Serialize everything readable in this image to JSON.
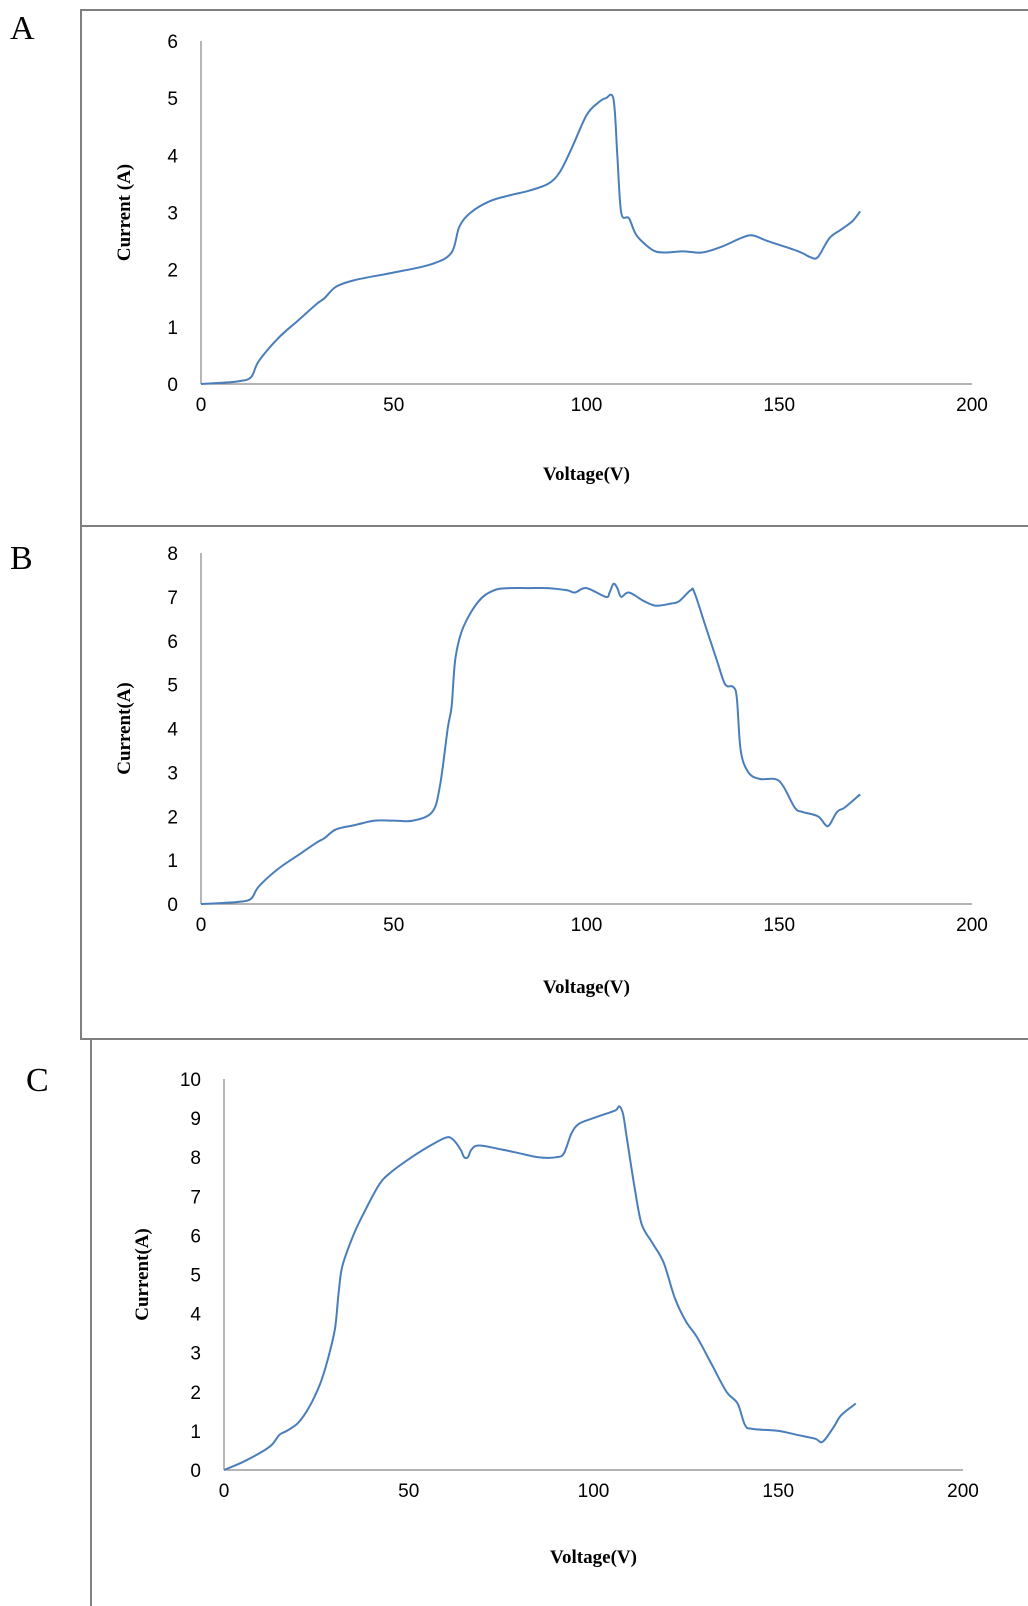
{
  "panels": [
    {
      "letter": "A"
    },
    {
      "letter": "B"
    },
    {
      "letter": "C"
    }
  ],
  "chart_data": [
    {
      "type": "line",
      "xlabel": "Voltage(V)",
      "ylabel": "Current (A)",
      "xlim": [
        0,
        200
      ],
      "ylim": [
        0,
        6
      ],
      "x_ticks": [
        0,
        50,
        100,
        150,
        200
      ],
      "y_ticks": [
        0,
        1,
        2,
        3,
        4,
        5,
        6
      ],
      "grid": false,
      "series": [
        {
          "color": "#4a7ebb",
          "points": [
            [
              0,
              0
            ],
            [
              5,
              0.02
            ],
            [
              10,
              0.05
            ],
            [
              13,
              0.12
            ],
            [
              15,
              0.4
            ],
            [
              20,
              0.8
            ],
            [
              25,
              1.1
            ],
            [
              30,
              1.4
            ],
            [
              32,
              1.5
            ],
            [
              35,
              1.7
            ],
            [
              40,
              1.82
            ],
            [
              50,
              1.95
            ],
            [
              60,
              2.1
            ],
            [
              65,
              2.3
            ],
            [
              67,
              2.75
            ],
            [
              70,
              3.0
            ],
            [
              75,
              3.2
            ],
            [
              80,
              3.3
            ],
            [
              85,
              3.38
            ],
            [
              90,
              3.5
            ],
            [
              93,
              3.7
            ],
            [
              96,
              4.1
            ],
            [
              100,
              4.7
            ],
            [
              103,
              4.92
            ],
            [
              105,
              5.0
            ],
            [
              107,
              4.98
            ],
            [
              108,
              4.0
            ],
            [
              109,
              3.0
            ],
            [
              111,
              2.9
            ],
            [
              113,
              2.6
            ],
            [
              117,
              2.35
            ],
            [
              120,
              2.3
            ],
            [
              125,
              2.32
            ],
            [
              130,
              2.3
            ],
            [
              135,
              2.4
            ],
            [
              140,
              2.55
            ],
            [
              143,
              2.6
            ],
            [
              147,
              2.5
            ],
            [
              155,
              2.32
            ],
            [
              158,
              2.22
            ],
            [
              160,
              2.22
            ],
            [
              163,
              2.55
            ],
            [
              166,
              2.7
            ],
            [
              169,
              2.85
            ],
            [
              171,
              3.02
            ]
          ]
        }
      ]
    },
    {
      "type": "line",
      "xlabel": "Voltage(V)",
      "ylabel": "Current(A)",
      "xlim": [
        0,
        200
      ],
      "ylim": [
        0,
        8
      ],
      "x_ticks": [
        0,
        50,
        100,
        150,
        200
      ],
      "y_ticks": [
        0,
        1,
        2,
        3,
        4,
        5,
        6,
        7,
        8
      ],
      "grid": false,
      "series": [
        {
          "color": "#4a7ebb",
          "points": [
            [
              0,
              0
            ],
            [
              5,
              0.02
            ],
            [
              10,
              0.05
            ],
            [
              13,
              0.12
            ],
            [
              15,
              0.4
            ],
            [
              20,
              0.8
            ],
            [
              25,
              1.1
            ],
            [
              30,
              1.4
            ],
            [
              32,
              1.5
            ],
            [
              35,
              1.7
            ],
            [
              40,
              1.8
            ],
            [
              45,
              1.9
            ],
            [
              50,
              1.9
            ],
            [
              55,
              1.9
            ],
            [
              60,
              2.1
            ],
            [
              62,
              2.7
            ],
            [
              64,
              4.0
            ],
            [
              65,
              4.5
            ],
            [
              66,
              5.6
            ],
            [
              68,
              6.3
            ],
            [
              72,
              6.9
            ],
            [
              76,
              7.15
            ],
            [
              80,
              7.2
            ],
            [
              85,
              7.2
            ],
            [
              90,
              7.2
            ],
            [
              95,
              7.15
            ],
            [
              97,
              7.1
            ],
            [
              100,
              7.2
            ],
            [
              105,
              7.0
            ],
            [
              106,
              7.1
            ],
            [
              107,
              7.3
            ],
            [
              108,
              7.2
            ],
            [
              109,
              7.0
            ],
            [
              111,
              7.1
            ],
            [
              115,
              6.9
            ],
            [
              118,
              6.8
            ],
            [
              122,
              6.85
            ],
            [
              124,
              6.9
            ],
            [
              127,
              7.15
            ],
            [
              128,
              7.1
            ],
            [
              131,
              6.3
            ],
            [
              134,
              5.5
            ],
            [
              136,
              5.0
            ],
            [
              138,
              4.95
            ],
            [
              139,
              4.7
            ],
            [
              140,
              3.5
            ],
            [
              142,
              3.0
            ],
            [
              145,
              2.85
            ],
            [
              150,
              2.8
            ],
            [
              154,
              2.2
            ],
            [
              156,
              2.1
            ],
            [
              160,
              2.0
            ],
            [
              162,
              1.8
            ],
            [
              163,
              1.8
            ],
            [
              165,
              2.1
            ],
            [
              167,
              2.2
            ],
            [
              171,
              2.5
            ]
          ]
        }
      ]
    },
    {
      "type": "line",
      "xlabel": "Voltage(V)",
      "ylabel": "Current(A)",
      "xlim": [
        0,
        200
      ],
      "ylim": [
        0,
        10
      ],
      "x_ticks": [
        0,
        50,
        100,
        150,
        200
      ],
      "y_ticks": [
        0,
        1,
        2,
        3,
        4,
        5,
        6,
        7,
        8,
        9,
        10
      ],
      "grid": false,
      "series": [
        {
          "color": "#4a7ebb",
          "points": [
            [
              0,
              0
            ],
            [
              5,
              0.2
            ],
            [
              10,
              0.45
            ],
            [
              13,
              0.65
            ],
            [
              15,
              0.9
            ],
            [
              17,
              1.0
            ],
            [
              20,
              1.2
            ],
            [
              23,
              1.6
            ],
            [
              26,
              2.2
            ],
            [
              28,
              2.8
            ],
            [
              30,
              3.6
            ],
            [
              31,
              4.5
            ],
            [
              32,
              5.2
            ],
            [
              35,
              6.0
            ],
            [
              38,
              6.6
            ],
            [
              42,
              7.3
            ],
            [
              45,
              7.6
            ],
            [
              50,
              7.95
            ],
            [
              55,
              8.25
            ],
            [
              60,
              8.5
            ],
            [
              62,
              8.45
            ],
            [
              64,
              8.2
            ],
            [
              65,
              8.0
            ],
            [
              66,
              8.0
            ],
            [
              67,
              8.2
            ],
            [
              69,
              8.3
            ],
            [
              75,
              8.2
            ],
            [
              80,
              8.1
            ],
            [
              85,
              8.0
            ],
            [
              90,
              8.0
            ],
            [
              92,
              8.1
            ],
            [
              94,
              8.6
            ],
            [
              96,
              8.85
            ],
            [
              100,
              9.0
            ],
            [
              103,
              9.1
            ],
            [
              106,
              9.2
            ],
            [
              107,
              9.3
            ],
            [
              108,
              9.1
            ],
            [
              109,
              8.5
            ],
            [
              111,
              7.3
            ],
            [
              113,
              6.3
            ],
            [
              116,
              5.8
            ],
            [
              119,
              5.3
            ],
            [
              122,
              4.4
            ],
            [
              125,
              3.8
            ],
            [
              128,
              3.4
            ],
            [
              132,
              2.7
            ],
            [
              136,
              2.0
            ],
            [
              139,
              1.7
            ],
            [
              141,
              1.15
            ],
            [
              143,
              1.05
            ],
            [
              150,
              1.0
            ],
            [
              155,
              0.9
            ],
            [
              160,
              0.8
            ],
            [
              162,
              0.72
            ],
            [
              165,
              1.1
            ],
            [
              167,
              1.4
            ],
            [
              171,
              1.7
            ]
          ]
        }
      ]
    }
  ]
}
